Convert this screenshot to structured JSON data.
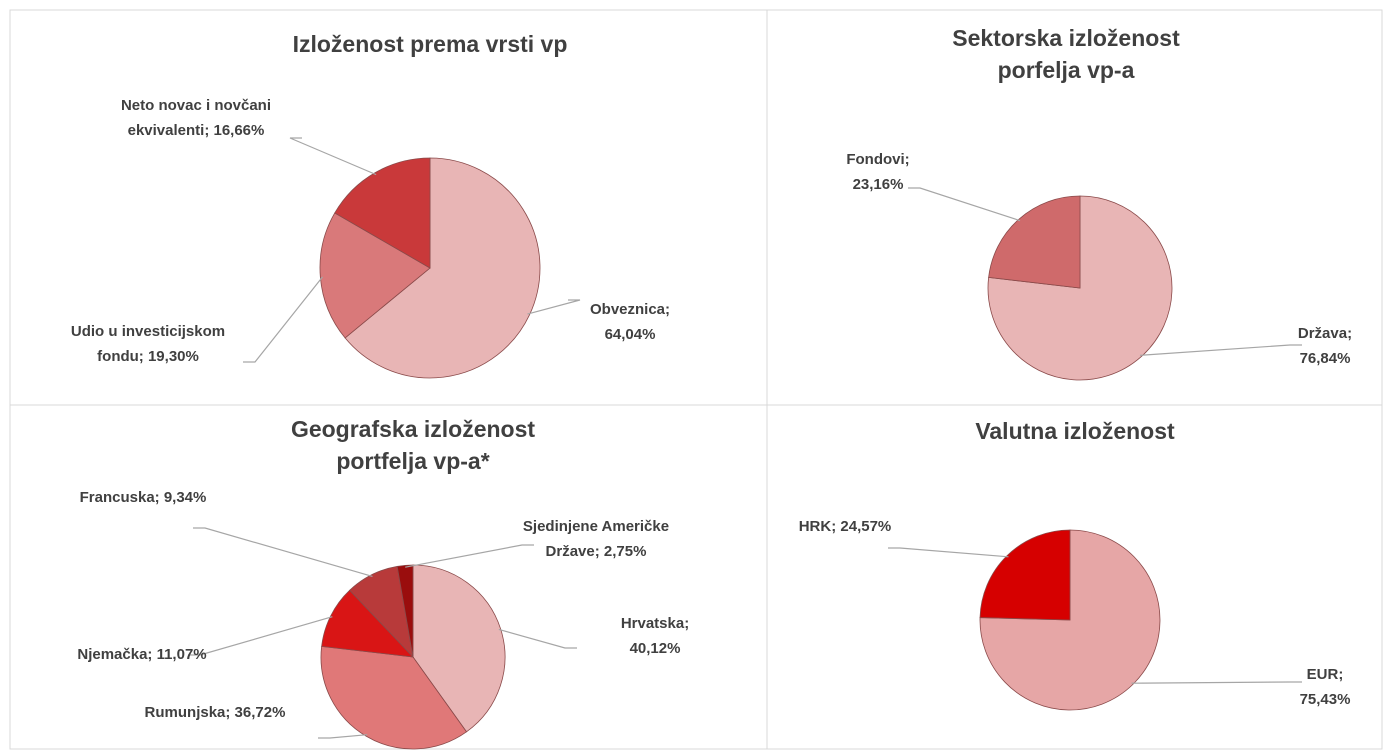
{
  "chart_data": [
    {
      "type": "pie",
      "title": [
        "Izloženost prema vrsti vp"
      ],
      "values": [
        64.04,
        19.3,
        16.66
      ],
      "value_labels": [
        [
          "Obveznica;",
          "64,04%"
        ],
        [
          "Udio u investicijskom",
          "fondu; 19,30%"
        ],
        [
          "Neto novac i novčani",
          "ekvivalenti; 16,66%"
        ]
      ],
      "colors": [
        "#e8b5b5",
        "#d9797a",
        "#c9393a"
      ]
    },
    {
      "type": "pie",
      "title": [
        "Sektorska izloženost",
        "porfelja vp-a"
      ],
      "values": [
        76.84,
        23.16
      ],
      "value_labels": [
        [
          "Država;",
          "76,84%"
        ],
        [
          "Fondovi;",
          "23,16%"
        ]
      ],
      "colors": [
        "#e8b5b5",
        "#cf6a6b"
      ]
    },
    {
      "type": "pie",
      "title": [
        "Geografska izloženost",
        "portfelja vp-a*"
      ],
      "values": [
        40.12,
        36.72,
        11.07,
        9.34,
        2.75
      ],
      "value_labels": [
        [
          "Hrvatska;",
          "40,12%"
        ],
        [
          "Rumunjska; 36,72%"
        ],
        [
          "Njemačka; 11,07%"
        ],
        [
          "Francuska; 9,34%"
        ],
        [
          "Sjedinjene Američke",
          "Države; 2,75%"
        ]
      ],
      "colors": [
        "#e8b5b5",
        "#e07878",
        "#d91515",
        "#b83a3a",
        "#9a0d0d"
      ]
    },
    {
      "type": "pie",
      "title": [
        "Valutna izloženost"
      ],
      "values": [
        75.43,
        24.57
      ],
      "value_labels": [
        [
          "EUR;",
          "75,43%"
        ],
        [
          "HRK; 24,57%"
        ]
      ],
      "colors": [
        "#e6a6a6",
        "#d60000"
      ]
    }
  ]
}
